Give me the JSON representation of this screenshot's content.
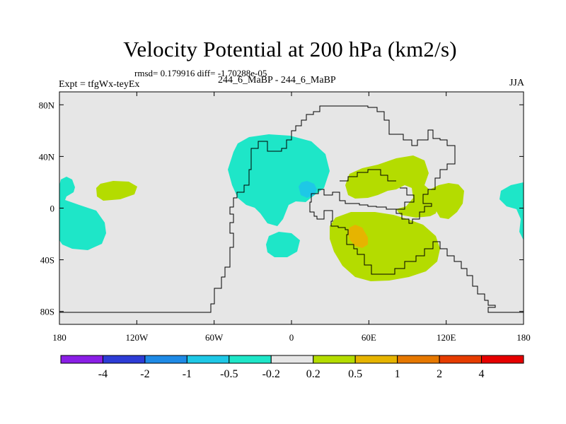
{
  "header": {
    "title": "Velocity Potential at 200 hPa (km2/s)",
    "stats": "rmsd= 0.179916 diff= -1.70288e-05",
    "experiment": "Expt = tfgWx-teyEx",
    "cases": "244_6_MaBP - 244_6_MaBP",
    "season": "JJA"
  },
  "chart_data": {
    "type": "heatmap",
    "title": "Velocity Potential at 200 hPa (km2/s)",
    "units": "km2/s",
    "xlim": [
      -180,
      180
    ],
    "ylim": [
      -90,
      90
    ],
    "x_ticks": [
      {
        "value": -180,
        "label": "180"
      },
      {
        "value": -120,
        "label": "120W"
      },
      {
        "value": -60,
        "label": "60W"
      },
      {
        "value": 0,
        "label": "0"
      },
      {
        "value": 60,
        "label": "60E"
      },
      {
        "value": 120,
        "label": "120E"
      },
      {
        "value": 180,
        "label": "180"
      }
    ],
    "y_ticks": [
      {
        "value": 80,
        "label": "80N"
      },
      {
        "value": 40,
        "label": "40N"
      },
      {
        "value": 0,
        "label": "0"
      },
      {
        "value": -40,
        "label": "40S"
      },
      {
        "value": -80,
        "label": "80S"
      }
    ],
    "colorbar": {
      "colors": [
        "#8a1ee6",
        "#2d3cd6",
        "#1e8ae6",
        "#1ec8e6",
        "#1ee6c8",
        "#e6e6e6",
        "#b4dc00",
        "#e6b400",
        "#e67800",
        "#e63c00",
        "#e60000"
      ],
      "labels": [
        "-4",
        "-2",
        "-1",
        "-0.5",
        "-0.2",
        "0.2",
        "0.5",
        "1",
        "2",
        "4"
      ]
    },
    "background_color": "#e6e6e6",
    "regions": [
      {
        "name": "pacific-east-negative",
        "bin": "-0.5 to -0.2",
        "color": "#1ee6c8",
        "lon_range": [
          -180,
          -145
        ],
        "lat_range": [
          -32,
          23
        ]
      },
      {
        "name": "pacific-east-positive",
        "bin": "0.2 to 0.5",
        "color": "#b4dc00",
        "lon_range": [
          -152,
          -120
        ],
        "lat_range": [
          4,
          20
        ]
      },
      {
        "name": "atlantic-negative",
        "bin": "-0.5 to -0.2",
        "color": "#1ee6c8",
        "lon_range": [
          -47,
          30
        ],
        "lat_range": [
          -14,
          50
        ]
      },
      {
        "name": "atlantic-core",
        "bin": "-1 to -0.5",
        "color": "#1ec8e6",
        "lon_range": [
          5,
          20
        ],
        "lat_range": [
          8,
          22
        ]
      },
      {
        "name": "south-atlantic-negative",
        "bin": "-0.5 to -0.2",
        "color": "#1ee6c8",
        "lon_range": [
          -37,
          -3
        ],
        "lat_range": [
          -34,
          -15
        ]
      },
      {
        "name": "asia-indian-positive",
        "bin": "0.2 to 0.5",
        "color": "#b4dc00",
        "lon_range": [
          32,
          110
        ],
        "lat_range": [
          -52,
          40
        ]
      },
      {
        "name": "pacific-west-positive",
        "bin": "0.2 to 0.5",
        "color": "#b4dc00",
        "lon_range": [
          110,
          148
        ],
        "lat_range": [
          -5,
          18
        ]
      },
      {
        "name": "indian-ocean-core",
        "bin": "0.5 to 1",
        "color": "#e6b400",
        "lon_range": [
          45,
          62
        ],
        "lat_range": [
          -27,
          -11
        ]
      },
      {
        "name": "dateline-negative",
        "bin": "-0.5 to -0.2",
        "color": "#1ee6c8",
        "lon_range": [
          162,
          180
        ],
        "lat_range": [
          -22,
          15
        ]
      }
    ]
  }
}
